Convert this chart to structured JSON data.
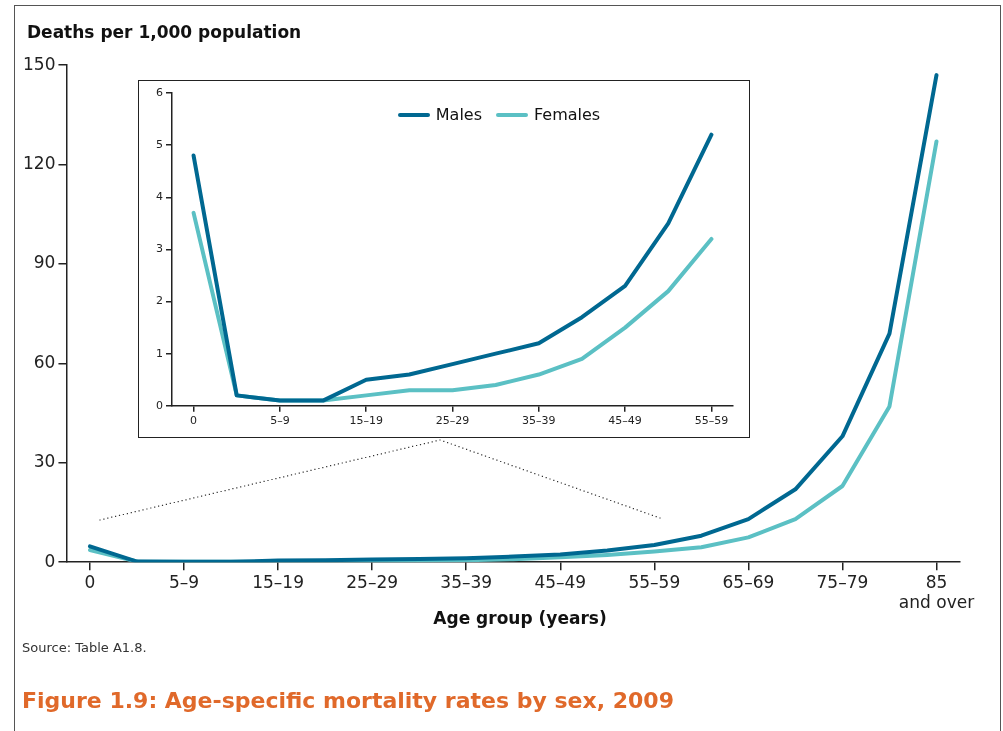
{
  "chart_data": [
    {
      "type": "line",
      "title": "Figure 1.9: Age-specific mortality rates by sex, 2009",
      "ylabel": "Deaths per 1,000 population",
      "xlabel": "Age group (years)",
      "annotations": [
        "Source: Table A1.8."
      ],
      "categories": [
        "0",
        null,
        "5–9",
        null,
        "15–19",
        null,
        "25–29",
        null,
        "35–39",
        null,
        "45–49",
        null,
        "55–59",
        null,
        "65–69",
        null,
        "75–79",
        null,
        "85 and over"
      ],
      "series": [
        {
          "color": "#006891",
          "values": [
            4.8,
            0.2,
            0.1,
            0.1,
            0.5,
            0.6,
            0.8,
            1.0,
            1.2,
            1.7,
            2.3,
            3.5,
            5.2,
            8,
            13,
            22,
            38,
            69,
            147
          ]
        },
        {
          "color": "#5bc0c4",
          "values": [
            3.7,
            0.2,
            0.1,
            0.1,
            0.2,
            0.3,
            0.3,
            0.4,
            0.6,
            0.9,
            1.5,
            2.2,
            3.2,
            4.5,
            7.5,
            13,
            23,
            47,
            127
          ]
        }
      ],
      "ylim": [
        0,
        150
      ],
      "yticks": [
        0,
        30,
        60,
        90,
        120,
        150
      ],
      "grid": false,
      "marker": "none",
      "line_style": "solid"
    },
    {
      "type": "line",
      "categories": [
        "0",
        null,
        "5–9",
        null,
        "15–19",
        null,
        "25–29",
        null,
        "35–39",
        null,
        "45–49",
        null,
        "55–59"
      ],
      "series": [
        {
          "name": "Males",
          "color": "#006891",
          "values": [
            4.8,
            0.2,
            0.1,
            0.1,
            0.5,
            0.6,
            0.8,
            1.0,
            1.2,
            1.7,
            2.3,
            3.5,
            5.2
          ]
        },
        {
          "name": "Females",
          "color": "#5bc0c4",
          "values": [
            3.7,
            0.2,
            0.1,
            0.1,
            0.2,
            0.3,
            0.3,
            0.4,
            0.6,
            0.9,
            1.5,
            2.2,
            3.2
          ]
        }
      ],
      "ylim": [
        0,
        6
      ],
      "yticks": [
        0,
        1,
        2,
        3,
        4,
        5,
        6
      ],
      "grid": false,
      "legend": "top",
      "marker": "none",
      "line_style": "solid"
    }
  ]
}
